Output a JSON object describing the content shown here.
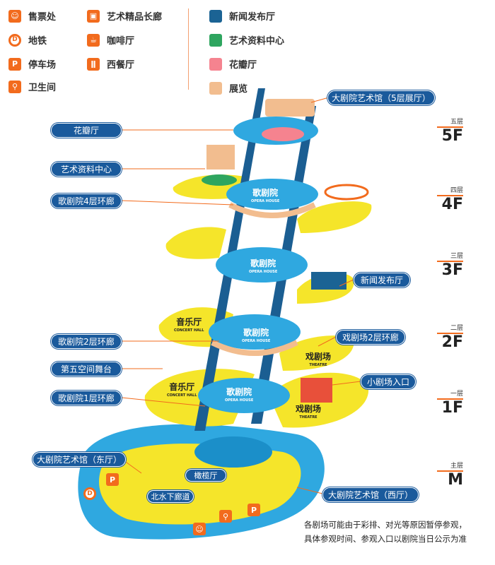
{
  "legend": {
    "facilities": [
      {
        "label": "售票处",
        "icon": "ticket-office-icon",
        "glyph": "☺"
      },
      {
        "label": "地铁",
        "icon": "subway-icon",
        "glyph": "D"
      },
      {
        "label": "停车场",
        "icon": "parking-icon",
        "glyph": "P"
      },
      {
        "label": "卫生间",
        "icon": "restroom-icon",
        "glyph": "⚲"
      },
      {
        "label": "艺术精品长廊",
        "icon": "gift-icon",
        "glyph": "▣"
      },
      {
        "label": "咖啡厅",
        "icon": "coffee-icon",
        "glyph": "☕"
      },
      {
        "label": "西餐厅",
        "icon": "restaurant-icon",
        "glyph": "ǁ"
      }
    ],
    "areas": [
      {
        "label": "新闻发布厅",
        "color": "#1b6394"
      },
      {
        "label": "艺术资料中心",
        "color": "#2ea55f"
      },
      {
        "label": "花瓣厅",
        "color": "#f5838f"
      },
      {
        "label": "展览",
        "color": "#f2bd8f"
      }
    ]
  },
  "callouts": {
    "gallery_5f": "大剧院艺术馆（5层展厅）",
    "petal_hall": "花瓣厅",
    "art_archive": "艺术资料中心",
    "opera_4f_corridor": "歌剧院4层环廊",
    "press_hall": "新闻发布厅",
    "theatre_2f_corridor": "戏剧场2层环廊",
    "opera_2f_corridor": "歌剧院2层环廊",
    "fifth_space_stage": "第五空间舞台",
    "small_theatre_entrance": "小剧场入口",
    "opera_1f_corridor": "歌剧院1层环廊",
    "gallery_east": "大剧院艺术馆（东厅）",
    "gallery_west": "大剧院艺术馆（西厅）",
    "olive_hall": "橄榄厅",
    "north_underwater_corridor": "北水下廊道"
  },
  "venues": {
    "opera_cn": "歌剧院",
    "opera_en": "OPERA HOUSE",
    "concert_cn": "音乐厅",
    "concert_en": "CONCERT HALL",
    "theatre_cn": "戏剧场",
    "theatre_en": "THEATRE"
  },
  "floors": [
    {
      "cn": "五层",
      "en": "5F"
    },
    {
      "cn": "四层",
      "en": "4F"
    },
    {
      "cn": "三层",
      "en": "3F"
    },
    {
      "cn": "二层",
      "en": "2F"
    },
    {
      "cn": "一层",
      "en": "1F"
    },
    {
      "cn": "主层",
      "en": "M"
    }
  ],
  "note": {
    "line1": "各剧场可能由于彩排、对光等原因暂停参观，",
    "line2": "具体参观时间、参观入口以剧院当日公示为准"
  },
  "colors": {
    "accent": "#f26b1d",
    "pill": "#1a5a9c",
    "tower": "#2fa8e0",
    "yellow": "#f5e52a"
  }
}
